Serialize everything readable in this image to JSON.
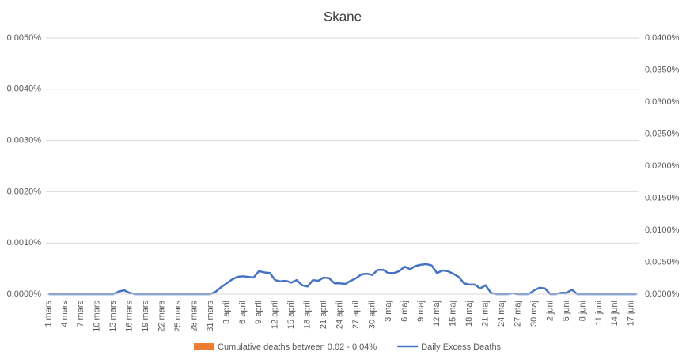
{
  "chart_data": {
    "type": "line",
    "title": "Skane",
    "categories": [
      "1 mars",
      null,
      null,
      "4 mars",
      null,
      null,
      "7 mars",
      null,
      null,
      "10 mars",
      null,
      null,
      "13 mars",
      null,
      null,
      "16 mars",
      null,
      null,
      "19 mars",
      null,
      null,
      "22 mars",
      null,
      null,
      "25 mars",
      null,
      null,
      "28 mars",
      null,
      null,
      "31 mars",
      null,
      null,
      "3 april",
      null,
      null,
      "6 april",
      null,
      null,
      "9 april",
      null,
      null,
      "12 april",
      null,
      null,
      "15 april",
      null,
      null,
      "18 april",
      null,
      null,
      "21 april",
      null,
      null,
      "24 april",
      null,
      null,
      "27 april",
      null,
      null,
      "30 april",
      null,
      null,
      "3 maj",
      null,
      null,
      "6 maj",
      null,
      null,
      "9 maj",
      null,
      null,
      "12 maj",
      null,
      null,
      "15 maj",
      null,
      null,
      "18 maj",
      null,
      null,
      "21 maj",
      null,
      null,
      "24 maj",
      null,
      null,
      "27 maj",
      null,
      null,
      "30 maj",
      null,
      null,
      "2 juni",
      null,
      null,
      "5 juni",
      null,
      null,
      "8 juni",
      null,
      null,
      "11 juni",
      null,
      null,
      "14 juni",
      null,
      null,
      "17 juni",
      null
    ],
    "series": [
      {
        "name": "Cumulative deaths between 0.02 - 0.04%",
        "type": "bar",
        "color": "#ed7d31",
        "values": [
          null,
          null,
          null,
          null,
          null,
          null,
          null,
          null,
          null,
          null,
          null,
          null,
          null,
          null,
          null,
          null,
          null,
          null,
          null,
          null,
          null,
          null,
          null,
          null,
          null,
          null,
          null,
          null,
          null,
          null,
          null,
          null,
          null,
          null,
          null,
          null,
          null,
          null,
          null,
          null,
          null,
          null,
          null,
          null,
          null,
          null,
          null,
          null,
          null,
          null,
          null,
          null,
          null,
          null,
          null,
          null,
          null,
          null,
          null,
          null,
          null,
          null,
          null,
          null,
          null,
          null,
          null,
          null,
          null,
          null,
          null,
          null,
          null,
          null,
          null,
          null,
          null,
          null,
          null,
          null,
          null,
          null,
          null,
          null,
          null,
          null,
          null,
          null,
          null,
          null,
          null,
          null,
          null,
          null,
          null,
          null,
          null,
          null,
          null,
          null,
          null,
          null,
          null,
          null,
          null,
          null,
          null,
          null,
          null,
          null
        ]
      },
      {
        "name": "Daily Excess Deaths",
        "type": "line",
        "axis": "y2",
        "color": "#4472c4",
        "values": [
          0,
          0,
          0,
          0,
          0,
          0,
          0,
          0,
          0,
          0,
          0,
          0,
          0,
          0.0004,
          0.0006,
          0.0002,
          0,
          0,
          0,
          0,
          0,
          0,
          0,
          0,
          0,
          0,
          0,
          0,
          0,
          0,
          0,
          0.0004,
          0.0011,
          0.0017,
          0.0023,
          0.0027,
          0.0028,
          0.0027,
          0.0026,
          0.0036,
          0.0034,
          0.0033,
          0.0022,
          0.002,
          0.0021,
          0.0018,
          0.0022,
          0.0014,
          0.0012,
          0.0022,
          0.0021,
          0.0026,
          0.0025,
          0.0017,
          0.0017,
          0.0016,
          0.0021,
          0.0025,
          0.0031,
          0.0032,
          0.003,
          0.0038,
          0.0038,
          0.0033,
          0.0033,
          0.0036,
          0.0043,
          0.0039,
          0.0044,
          0.0046,
          0.0047,
          0.0045,
          0.0033,
          0.0037,
          0.0036,
          0.0032,
          0.0027,
          0.0017,
          0.0015,
          0.0015,
          0.0009,
          0.0014,
          0.0002,
          0,
          0,
          0,
          0.0001,
          0,
          0,
          0,
          0.0006,
          0.001,
          0.0009,
          0,
          0,
          0.0002,
          0.0002,
          0.0007,
          0,
          0,
          0,
          0,
          0,
          0,
          0,
          0,
          0,
          0,
          0,
          0
        ]
      }
    ],
    "ylim": [
      0,
      0.005
    ],
    "yticks": [
      {
        "value": 0,
        "label": "0.0000%"
      },
      {
        "value": 0.001,
        "label": "0.0010%"
      },
      {
        "value": 0.002,
        "label": "0.0020%"
      },
      {
        "value": 0.003,
        "label": "0.0030%"
      },
      {
        "value": 0.004,
        "label": "0.0040%"
      },
      {
        "value": 0.005,
        "label": "0.0050%"
      }
    ],
    "y2lim": [
      0,
      0.04
    ],
    "y2ticks": [
      {
        "value": 0,
        "label": "0.0000%"
      },
      {
        "value": 0.005,
        "label": "0.0050%"
      },
      {
        "value": 0.01,
        "label": "0.0100%"
      },
      {
        "value": 0.015,
        "label": "0.0150%"
      },
      {
        "value": 0.02,
        "label": "0.0200%"
      },
      {
        "value": 0.025,
        "label": "0.0250%"
      },
      {
        "value": 0.03,
        "label": "0.0300%"
      },
      {
        "value": 0.035,
        "label": "0.0350%"
      },
      {
        "value": 0.04,
        "label": "0.0400%"
      }
    ],
    "grid": true,
    "legend": "bottom"
  }
}
